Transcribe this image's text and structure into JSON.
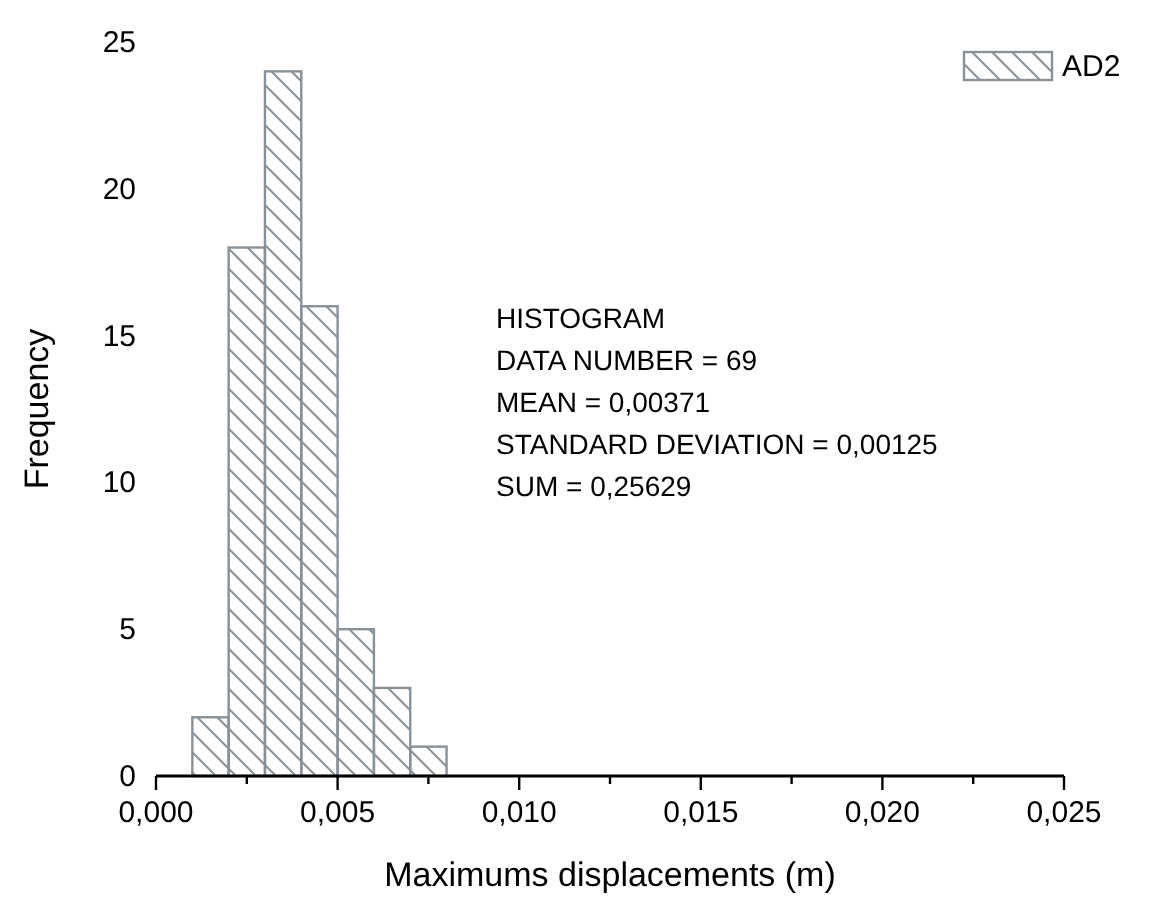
{
  "chart_data": {
    "type": "histogram",
    "xlabel": "Maximums displacements (m)",
    "ylabel": "Frequency",
    "bins": [
      0.001,
      0.002,
      0.003,
      0.004,
      0.005,
      0.006,
      0.007,
      0.008
    ],
    "series": [
      {
        "name": "AD2",
        "color": "#8a9196",
        "values": [
          2,
          18,
          24,
          16,
          5,
          3,
          1
        ]
      }
    ],
    "xlim": [
      0,
      0.025
    ],
    "xticks": [
      {
        "value": 0,
        "label": "0,000"
      },
      {
        "value": 0.0025,
        "label": null
      },
      {
        "value": 0.005,
        "label": "0,005"
      },
      {
        "value": 0.0075,
        "label": null
      },
      {
        "value": 0.01,
        "label": "0,010"
      },
      {
        "value": 0.0125,
        "label": null
      },
      {
        "value": 0.015,
        "label": "0,015"
      },
      {
        "value": 0.0175,
        "label": null
      },
      {
        "value": 0.02,
        "label": "0,020"
      },
      {
        "value": 0.0225,
        "label": null
      },
      {
        "value": 0.025,
        "label": "0,025"
      }
    ],
    "ylim": [
      0,
      25
    ],
    "yticks": [
      0,
      5,
      10,
      15,
      20,
      25
    ],
    "legend": "top right",
    "grid": false,
    "annotations": [
      "HISTOGRAM",
      "DATA NUMBER = 69",
      "MEAN = 0,00371",
      "STANDARD DEVIATION = 0,00125",
      "SUM = 0,25629"
    ]
  }
}
